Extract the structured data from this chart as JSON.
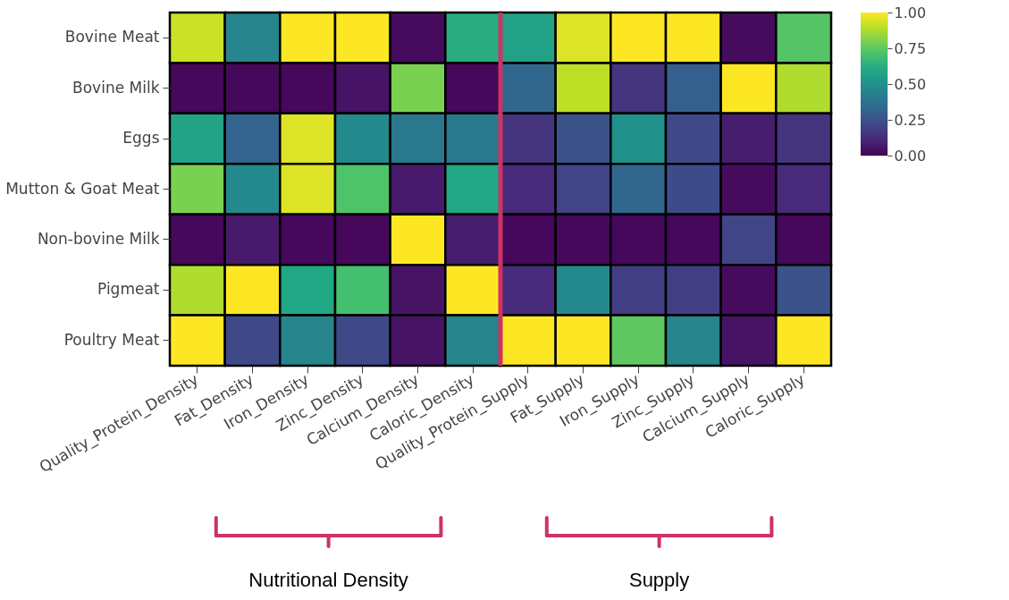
{
  "chart_data": {
    "type": "heatmap",
    "categories": [
      "Quality_Protein_Density",
      "Fat_Density",
      "Iron_Density",
      "Zinc_Density",
      "Calcium_Density",
      "Caloric_Density",
      "Quality_Protein_Supply",
      "Fat_Supply",
      "Iron_Supply",
      "Zinc_Supply",
      "Calcium_Supply",
      "Caloric_Supply"
    ],
    "y_categories": [
      "Bovine Meat",
      "Bovine Milk",
      "Eggs",
      "Mutton & Goat Meat",
      "Non-bovine Milk",
      "Pigmeat",
      "Poultry Meat"
    ],
    "cells": [
      [
        0.92,
        0.45,
        1.0,
        1.0,
        0.03,
        0.62,
        0.57,
        0.95,
        1.0,
        1.0,
        0.03,
        0.73
      ],
      [
        0.02,
        0.02,
        0.02,
        0.05,
        0.8,
        0.02,
        0.33,
        0.9,
        0.15,
        0.3,
        1.0,
        0.88
      ],
      [
        0.58,
        0.32,
        0.95,
        0.47,
        0.4,
        0.4,
        0.15,
        0.25,
        0.5,
        0.22,
        0.08,
        0.15
      ],
      [
        0.8,
        0.47,
        0.95,
        0.72,
        0.07,
        0.6,
        0.12,
        0.2,
        0.33,
        0.23,
        0.03,
        0.12
      ],
      [
        0.02,
        0.07,
        0.02,
        0.02,
        1.0,
        0.08,
        0.02,
        0.02,
        0.02,
        0.02,
        0.2,
        0.02
      ],
      [
        0.88,
        1.0,
        0.6,
        0.7,
        0.05,
        1.0,
        0.12,
        0.47,
        0.18,
        0.18,
        0.03,
        0.25
      ],
      [
        1.0,
        0.22,
        0.45,
        0.22,
        0.05,
        0.45,
        1.0,
        1.0,
        0.75,
        0.45,
        0.05,
        1.0
      ]
    ],
    "clim": [
      0,
      1
    ],
    "cticks": [
      {
        "value": 0,
        "label": "0.00"
      },
      {
        "value": 0.25,
        "label": "0.25"
      },
      {
        "value": 0.5,
        "label": "0.50"
      },
      {
        "value": 0.75,
        "label": "0.75"
      },
      {
        "value": 1,
        "label": "1.00"
      }
    ],
    "ref_lines": [
      {
        "axis": "x",
        "value": "Quality_Protein_Supply",
        "color": "#cc3366"
      }
    ],
    "annotations": [
      "Nutritional Density",
      "Supply"
    ]
  }
}
